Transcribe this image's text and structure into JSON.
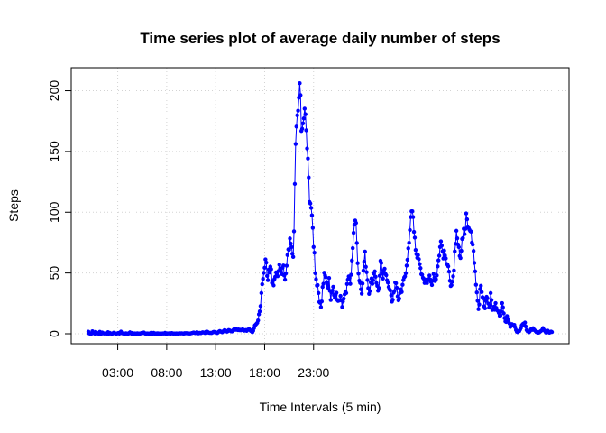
{
  "chart_data": {
    "type": "line",
    "title": "Time series plot of average daily number of steps",
    "xlabel": "Time Intervals (5 min)",
    "ylabel": "Steps",
    "x_ticks": [
      {
        "label": "03:00",
        "hour": 3
      },
      {
        "label": "08:00",
        "hour": 8
      },
      {
        "label": "13:00",
        "hour": 13
      },
      {
        "label": "18:00",
        "hour": 18
      },
      {
        "label": "23:00",
        "hour": 23
      }
    ],
    "y_ticks": [
      0,
      50,
      100,
      150,
      200
    ],
    "xlim": [
      "00:00",
      "23:55"
    ],
    "ylim": [
      0,
      206
    ],
    "grid": true,
    "line_color": "#0000ff",
    "marker_color": "#0000ff",
    "series": [
      {
        "x_start_time": "00:00",
        "x_step_minutes": 5,
        "values": [
          1.7,
          0.3,
          0.1,
          0.2,
          0.1,
          2.1,
          0.5,
          0.9,
          0,
          1.5,
          0.8,
          0.2,
          0.3,
          0,
          1.6,
          0.1,
          0,
          1.1,
          0.6,
          0.2,
          0.2,
          0.3,
          0.4,
          0.1,
          1.3,
          0,
          0.8,
          0.3,
          0.1,
          0,
          0.2,
          0.9,
          0.5,
          0.3,
          0,
          0.2,
          0.4,
          0.7,
          0.1,
          1.1,
          1.8,
          0.5,
          0.3,
          0.2,
          0,
          0,
          0.4,
          0.2,
          0,
          0,
          0.6,
          1.2,
          0.4,
          0,
          0.7,
          0.1,
          0,
          0.3,
          0.1,
          0,
          0.4,
          0.1,
          0.2,
          0.1,
          0.2,
          0.6,
          0.8,
          0.6,
          1.1,
          0.5,
          0,
          0,
          0.3,
          0.2,
          0,
          0.2,
          0.1,
          0.9,
          0,
          0.1,
          0.8,
          0.1,
          0.1,
          0.3,
          0,
          0.4,
          0,
          0.2,
          0.1,
          0,
          0.1,
          0.3,
          0.2,
          0.2,
          0.8,
          0,
          0,
          0.3,
          0.2,
          0.4,
          0.1,
          0,
          0.6,
          0.4,
          0.1,
          0.2,
          0.2,
          0.1,
          0.3,
          0.2,
          0,
          0.3,
          0.4,
          0.2,
          0.4,
          0.3,
          0.2,
          0.1,
          0.5,
          0.3,
          0.5,
          0.4,
          0.2,
          0.3,
          0.2,
          0.2,
          0.4,
          0.6,
          0.8,
          1.1,
          0.8,
          0.5,
          0.7,
          1.3,
          0.4,
          0.3,
          0.8,
          0.7,
          0.5,
          0.9,
          1.2,
          1.1,
          1.0,
          0.6,
          1.5,
          1.8,
          1.6,
          1.0,
          0.8,
          0.7,
          0.8,
          0.6,
          1.0,
          1.4,
          1.6,
          1.3,
          1.0,
          0.8,
          0.6,
          1.3,
          1.8,
          2.3,
          1.9,
          1.5,
          1.2,
          1.8,
          2.5,
          3.0,
          2.6,
          2.0,
          1.7,
          2.2,
          3.1,
          2.8,
          2.4,
          2.0,
          1.9,
          2.6,
          3.4,
          4.0,
          3.2,
          3.8,
          3.5,
          3.0,
          3.6,
          2.9,
          3.3,
          2.8,
          3.1,
          3.7,
          3.2,
          2.5,
          2.9,
          3.1,
          2.4,
          3.0,
          3.6,
          3.9,
          3.2,
          2.4,
          2.0,
          1.3,
          2.5,
          4.7,
          6.8,
          7.5,
          8.2,
          9.0,
          11.0,
          16.0,
          18.4,
          22.8,
          33.5,
          40.8,
          45.1,
          50.1,
          54.3,
          61.2,
          58.6,
          47.6,
          44.1,
          52.8,
          50.3,
          55.2,
          53.1,
          41.8,
          43.4,
          39.8,
          45.0,
          46.9,
          50.5,
          48.8,
          47.4,
          51.6,
          56.8,
          53.7,
          51.2,
          49.1,
          54.4,
          56.2,
          47.9,
          44.5,
          49.6,
          56.0,
          64.8,
          69.4,
          69.1,
          78.4,
          74.2,
          71.3,
          65.8,
          63.2,
          84.3,
          123.3,
          156.2,
          170.5,
          179.8,
          183.6,
          194.3,
          206.2,
          196.4,
          166.9,
          168.6,
          173.1,
          177.2,
          185.2,
          180.6,
          167.4,
          152.5,
          144.2,
          128.6,
          108.4,
          107.2,
          103.6,
          97.5,
          87.2,
          71.4,
          66.7,
          49.9,
          44.9,
          39.7,
          40.0,
          33.5,
          26.1,
          25.5,
          21.9,
          26.6,
          38.5,
          41.1,
          50.2,
          48.2,
          46.5,
          42.6,
          40.1,
          37.7,
          45.9,
          35.3,
          27.8,
          33.9,
          35.5,
          38.6,
          31.7,
          29.6,
          32.0,
          33.7,
          27.8,
          27.0,
          27.6,
          27.4,
          31.1,
          27.6,
          22.0,
          26.5,
          28.9,
          32.4,
          34.8,
          33.5,
          41.0,
          44.6,
          47.2,
          45.9,
          41.1,
          48.6,
          60.3,
          70.5,
          83.1,
          89.8,
          93.2,
          91.2,
          74.6,
          58.1,
          49.5,
          43.7,
          41.9,
          36.6,
          33.0,
          41.3,
          52.0,
          59.4,
          67.6,
          55.1,
          50.7,
          44.2,
          37.5,
          32.8,
          35.1,
          42.3,
          45.5,
          41.1,
          44.1,
          49.5,
          51.3,
          46.9,
          41.7,
          39.4,
          35.4,
          37.6,
          47.7,
          60.1,
          58.3,
          49.8,
          45.4,
          52.0,
          53.5,
          49.3,
          48.2,
          44.0,
          42.1,
          38.5,
          36.5,
          35.7,
          31.6,
          26.4,
          28.0,
          33.8,
          35.1,
          42.2,
          41.6,
          37.8,
          30.8,
          27.5,
          28.9,
          33.6,
          36.6,
          34.4,
          40.3,
          44.2,
          46.3,
          47.3,
          49.9,
          56.1,
          60.9,
          70.3,
          74.8,
          85.4,
          96.1,
          100.8,
          100.8,
          96.1,
          83.8,
          79.1,
          68.9,
          65.5,
          62.5,
          64.7,
          61.4,
          57.4,
          54.0,
          49.0,
          48.6,
          46.1,
          45.2,
          41.8,
          44.6,
          44.4,
          41.7,
          43.8,
          45.0,
          47.9,
          44.7,
          42.5,
          40.1,
          43.6,
          49.2,
          46.0,
          43.4,
          44.9,
          48.0,
          55.4,
          60.4,
          64.2,
          71.4,
          76.0,
          72.6,
          67.8,
          61.9,
          68.4,
          64.4,
          62.0,
          57.5,
          57.0,
          55.5,
          51.2,
          43.6,
          39.3,
          40.0,
          42.9,
          47.3,
          52.1,
          67.8,
          74.0,
          84.7,
          78.5,
          73.4,
          71.3,
          64.0,
          62.3,
          68.2,
          78.0,
          78.8,
          86.4,
          82.0,
          86.3,
          99.0,
          94.2,
          88.3,
          87.1,
          85.6,
          84.5,
          84.0,
          75.0,
          73.4,
          68.1,
          58.3,
          51.3,
          40.3,
          34.0,
          27.1,
          20.3,
          24.1,
          36.8,
          39.5,
          34.3,
          30.1,
          29.2,
          22.6,
          20.9,
          27.0,
          30.4,
          29.2,
          24.8,
          21.6,
          23.1,
          33.5,
          27.8,
          19.6,
          20.2,
          22.3,
          19.7,
          25.2,
          21.2,
          19.3,
          18.6,
          17.1,
          14.8,
          15.1,
          18.3,
          25.2,
          21.8,
          16.8,
          12.9,
          10.2,
          9.7,
          14.5,
          12.3,
          10.0,
          8.4,
          5.6,
          7.5,
          7.9,
          7.0,
          6.6,
          7.3,
          5.3,
          3.1,
          1.7,
          1.3,
          2.1,
          2.2,
          3.5,
          4.8,
          6.8,
          7.7,
          8.3,
          7.6,
          9.2,
          6.0,
          3.1,
          2.2,
          1.8,
          1.3,
          2.1,
          3.5,
          4.1,
          3.2,
          4.6,
          3.5,
          2.8,
          2.2,
          1.3,
          1.5,
          0.9,
          1.0,
          1.5,
          2.0,
          2.5,
          3.1,
          4.7,
          3.4,
          2.6,
          1.7,
          0.9,
          1.6,
          2.5,
          1.2,
          0.9,
          1.3,
          1.8,
          1.4
        ]
      }
    ]
  }
}
